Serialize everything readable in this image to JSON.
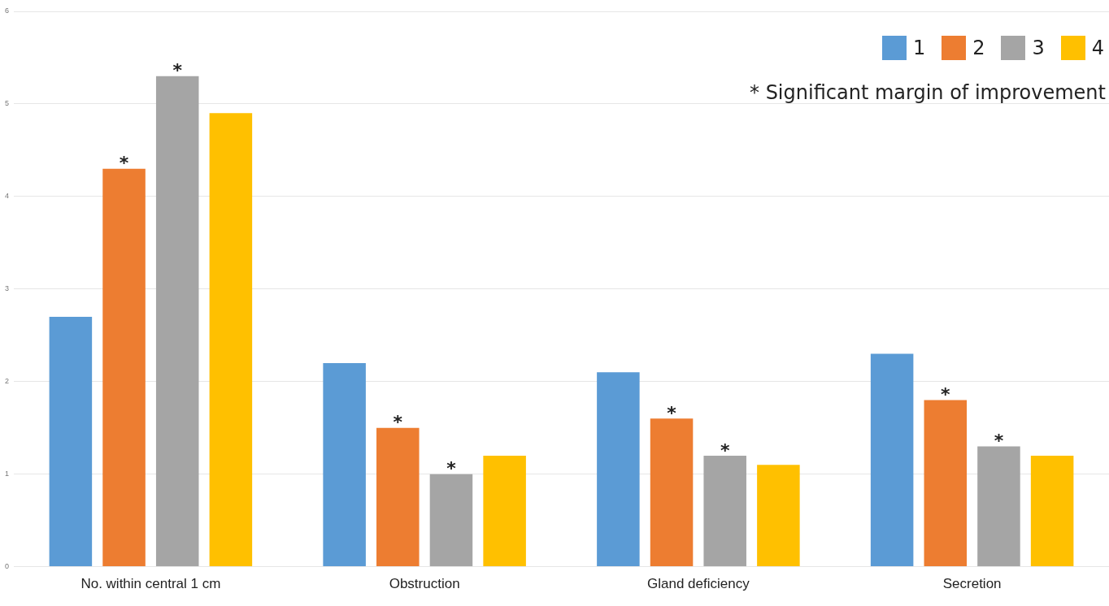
{
  "chart_data": {
    "type": "bar",
    "categories": [
      "No. within central 1 cm",
      "Obstruction",
      "Gland deficiency",
      "Secretion"
    ],
    "series": [
      {
        "name": "1",
        "color": "#5b9bd5",
        "values": [
          2.7,
          2.2,
          2.1,
          2.3
        ]
      },
      {
        "name": "2",
        "color": "#ed7d31",
        "values": [
          4.3,
          1.5,
          1.6,
          1.8
        ],
        "value_labels": [
          "*",
          "*",
          "*",
          "*"
        ]
      },
      {
        "name": "3",
        "color": "#a5a5a5",
        "values": [
          5.3,
          1.0,
          1.2,
          1.3
        ],
        "value_labels": [
          "*",
          "*",
          "*",
          "*"
        ]
      },
      {
        "name": "4",
        "color": "#ffc000",
        "values": [
          4.9,
          1.2,
          1.1,
          1.2
        ]
      }
    ],
    "ylim": [
      0,
      6
    ],
    "yticks": [
      0,
      1,
      2,
      3,
      4,
      5,
      6
    ],
    "grid": "y",
    "legend": "top right",
    "annotations": [
      "* Significant margin of improvement"
    ]
  }
}
